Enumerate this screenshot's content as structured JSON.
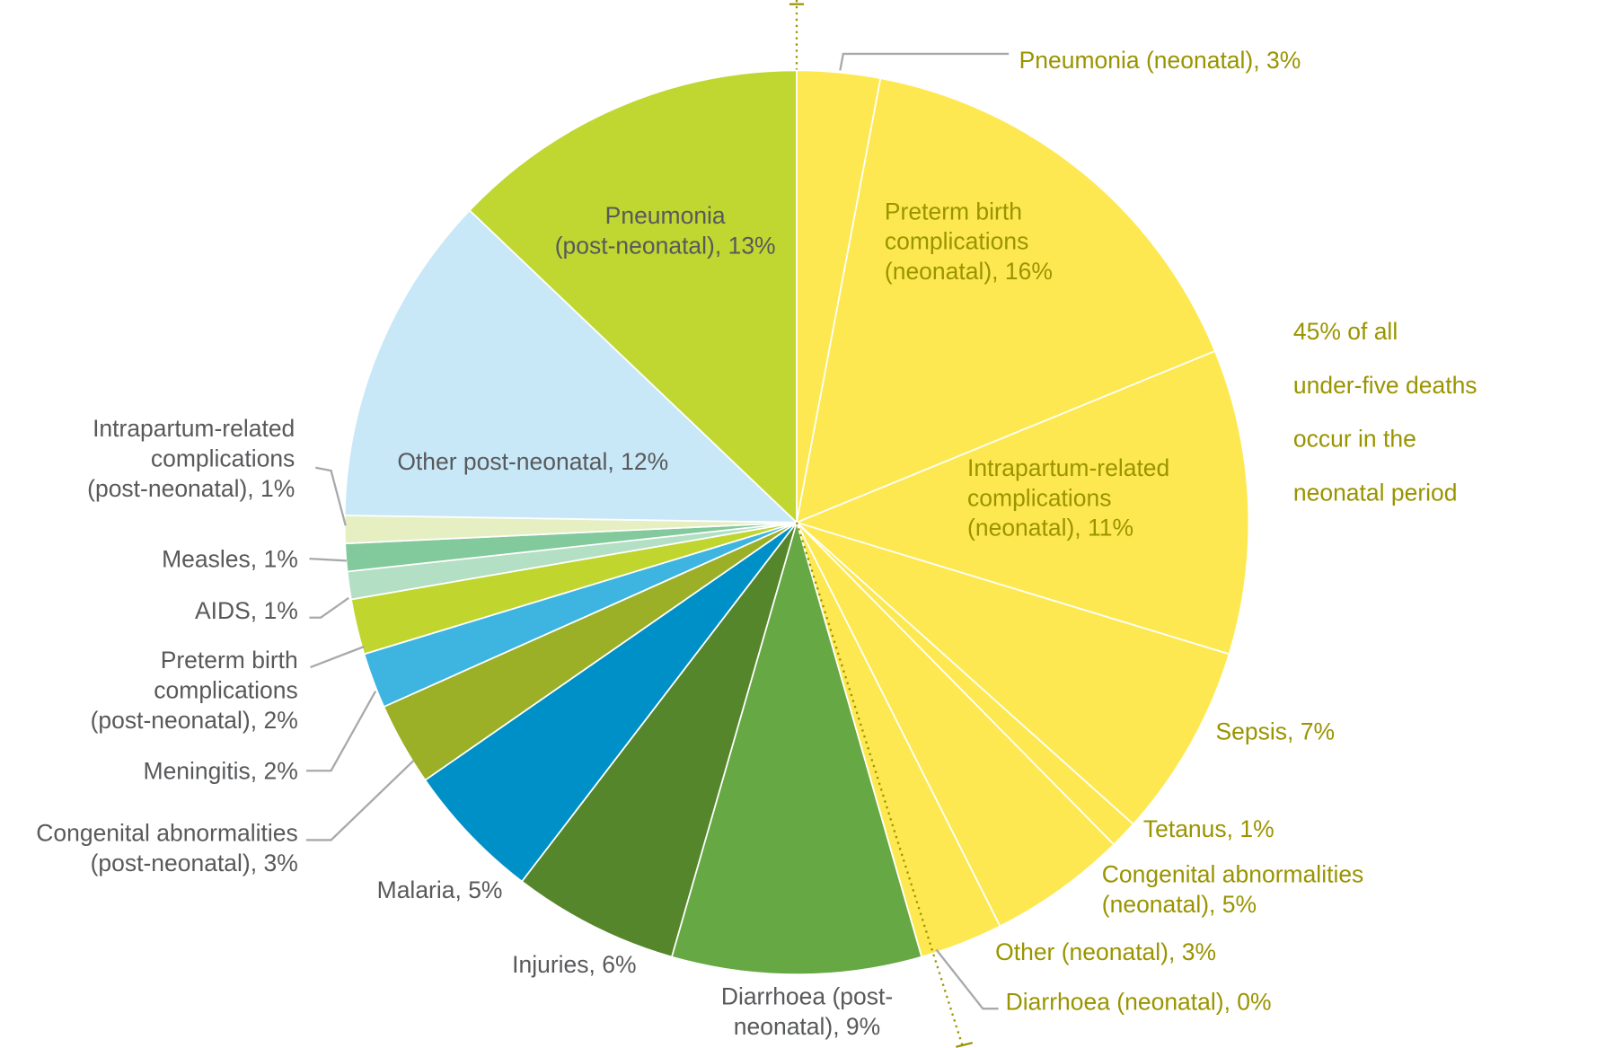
{
  "chart_data": {
    "type": "pie",
    "categories": [
      "Pneumonia (neonatal), 3%",
      "Preterm birth\ncomplications\n(neonatal), 16%",
      "Intrapartum-related\ncomplications\n(neonatal), 11%",
      "Sepsis, 7%",
      "Tetanus, 1%",
      "Congenital abnormalities\n(neonatal), 5%",
      "Other (neonatal), 3%",
      "Diarrhoea (neonatal), 0%",
      "Diarrhoea (post-\nneonatal), 9%",
      "Injuries, 6%",
      "Malaria, 5%",
      "Congenital abnormalities\n(post-neonatal), 3%",
      "Meningitis, 2%",
      "Preterm birth\ncomplications\n(post-neonatal), 2%",
      "AIDS, 1%",
      "Measles, 1%",
      "Intrapartum-related\ncomplications\n(post-neonatal), 1%",
      "Other post-neonatal, 12%",
      "Pneumonia\n(post-neonatal), 13%"
    ],
    "values": [
      3,
      16,
      11,
      7,
      1,
      5,
      3,
      0,
      9,
      6,
      5,
      3,
      2,
      2,
      1,
      1,
      1,
      12,
      13
    ],
    "colors": [
      "#fee851",
      "#fee851",
      "#fee851",
      "#fee851",
      "#fee851",
      "#fee851",
      "#fee851",
      "#d9e021",
      "#65a844",
      "#55862b",
      "#0090c8",
      "#9bb027",
      "#3db5e0",
      "#c0d62f",
      "#b3dfc4",
      "#82c99c",
      "#e6efc1",
      "#c8e8f8",
      "#bfd730"
    ],
    "label_colors": [
      "#9a9400",
      "#9a9400",
      "#9a9400",
      "#9a9400",
      "#9a9400",
      "#9a9400",
      "#9a9400",
      "#9a9400",
      "#58595b",
      "#58595b",
      "#58595b",
      "#58595b",
      "#58595b",
      "#58595b",
      "#58595b",
      "#58595b",
      "#58595b",
      "#58595b",
      "#58595b"
    ],
    "annotation": "45% of all\nunder-five deaths\noccur in the\nneonatal period",
    "annotation_color": "#9a9400"
  }
}
